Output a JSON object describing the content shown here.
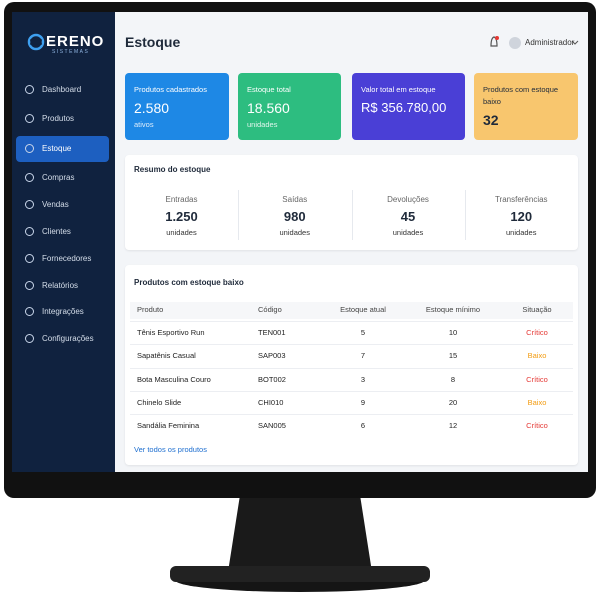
{
  "brand": {
    "name": "ERENO",
    "tagline": "SISTEMAS"
  },
  "sidebar": {
    "items": [
      "Dashboard",
      "Produtos",
      "Estoque",
      "Compras",
      "Vendas",
      "Clientes",
      "Fornecedores",
      "Relatórios",
      "Integrações",
      "Configurações"
    ],
    "active": 2
  },
  "header": {
    "title": "Estoque",
    "user": "Administrador"
  },
  "cards": [
    {
      "label": "Produtos cadastrados",
      "value": "2.580",
      "unit": "ativos",
      "color": "#1e88e5",
      "text_color": "#ffffff"
    },
    {
      "label": "Estoque total",
      "value": "18.560",
      "unit": "unidades",
      "color": "#2dbd80",
      "text_color": "#ffffff"
    },
    {
      "label": "Valor total em estoque",
      "value": "R$ 356.780,00",
      "color": "#4a3fd6",
      "text_color": "#ffffff"
    },
    {
      "label": "Produtos com estoque baixo",
      "value": "32",
      "color": "#f8c66e",
      "text_color": "#1f2a3a"
    }
  ],
  "summary": {
    "title": "Resumo do estoque",
    "items": [
      {
        "label": "Entradas",
        "value": "1.250",
        "unit": "unidades"
      },
      {
        "label": "Saídas",
        "value": "980",
        "unit": "unidades"
      },
      {
        "label": "Devoluções",
        "value": "45",
        "unit": "unidades"
      },
      {
        "label": "Transferências",
        "value": "120",
        "unit": "unidades"
      }
    ]
  },
  "low_stock": {
    "title": "Produtos com estoque baixo",
    "columns": [
      "Produto",
      "Código",
      "Estoque atual",
      "Estoque mínimo",
      "Situação"
    ],
    "rows": [
      {
        "name": "Tênis Esportivo Run",
        "code": "TEN001",
        "current": 5,
        "minimum": 10,
        "status": "Crítico",
        "status_color": "#e53935"
      },
      {
        "name": "Sapatênis Casual",
        "code": "SAP003",
        "current": 7,
        "minimum": 15,
        "status": "Baixo",
        "status_color": "#f39c12"
      },
      {
        "name": "Bota Masculina Couro",
        "code": "BOT002",
        "current": 3,
        "minimum": 8,
        "status": "Crítico",
        "status_color": "#e53935"
      },
      {
        "name": "Chinelo Slide",
        "code": "CHI010",
        "current": 9,
        "minimum": 20,
        "status": "Baixo",
        "status_color": "#f39c12"
      },
      {
        "name": "Sandália Feminina",
        "code": "SAN005",
        "current": 6,
        "minimum": 12,
        "status": "Crítico",
        "status_color": "#e53935"
      }
    ],
    "link": "Ver todos os produtos"
  }
}
